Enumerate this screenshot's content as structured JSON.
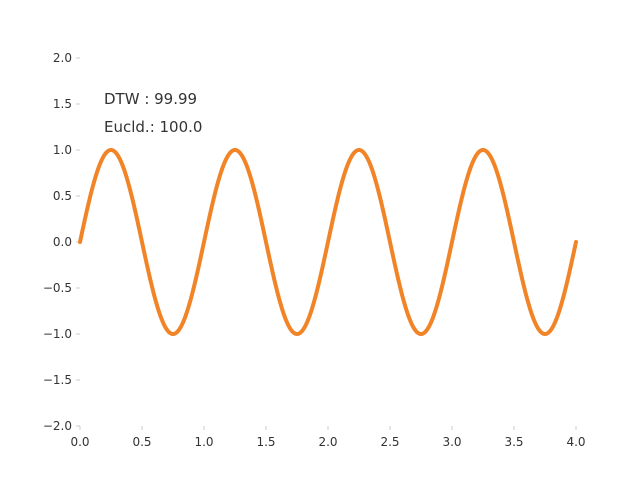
{
  "chart_data": {
    "type": "line",
    "title": "",
    "xlabel": "",
    "ylabel": "",
    "xlim": [
      0.0,
      4.0
    ],
    "ylim": [
      -2.0,
      2.0
    ],
    "grid": false,
    "xticks": [
      "0.0",
      "0.5",
      "1.0",
      "1.5",
      "2.0",
      "2.5",
      "3.0",
      "3.5",
      "4.0"
    ],
    "yticks": [
      "2.0",
      "1.5",
      "1.0",
      "0.5",
      "0.0",
      "−0.5",
      "−1.0",
      "−1.5",
      "−2.0"
    ],
    "series": [
      {
        "function": "sin(2*pi*x)",
        "x_range": [
          0.0,
          4.0
        ],
        "color": "#f28428",
        "samples": [
          {
            "x": 0.0,
            "y": 0.0
          },
          {
            "x": 0.25,
            "y": 1.0
          },
          {
            "x": 0.5,
            "y": 0.0
          },
          {
            "x": 0.75,
            "y": -1.0
          },
          {
            "x": 1.0,
            "y": 0.0
          },
          {
            "x": 1.25,
            "y": 1.0
          },
          {
            "x": 1.5,
            "y": 0.0
          },
          {
            "x": 1.75,
            "y": -1.0
          },
          {
            "x": 2.0,
            "y": 0.0
          },
          {
            "x": 2.25,
            "y": 1.0
          },
          {
            "x": 2.5,
            "y": 0.0
          },
          {
            "x": 2.75,
            "y": -1.0
          },
          {
            "x": 3.0,
            "y": 0.0
          },
          {
            "x": 3.25,
            "y": 1.0
          },
          {
            "x": 3.5,
            "y": 0.0
          },
          {
            "x": 3.75,
            "y": -1.0
          },
          {
            "x": 4.0,
            "y": 0.0
          }
        ]
      }
    ],
    "annotations": [
      {
        "text": "DTW   : 99.99"
      },
      {
        "text": "Eucld.: 100.0"
      }
    ]
  }
}
